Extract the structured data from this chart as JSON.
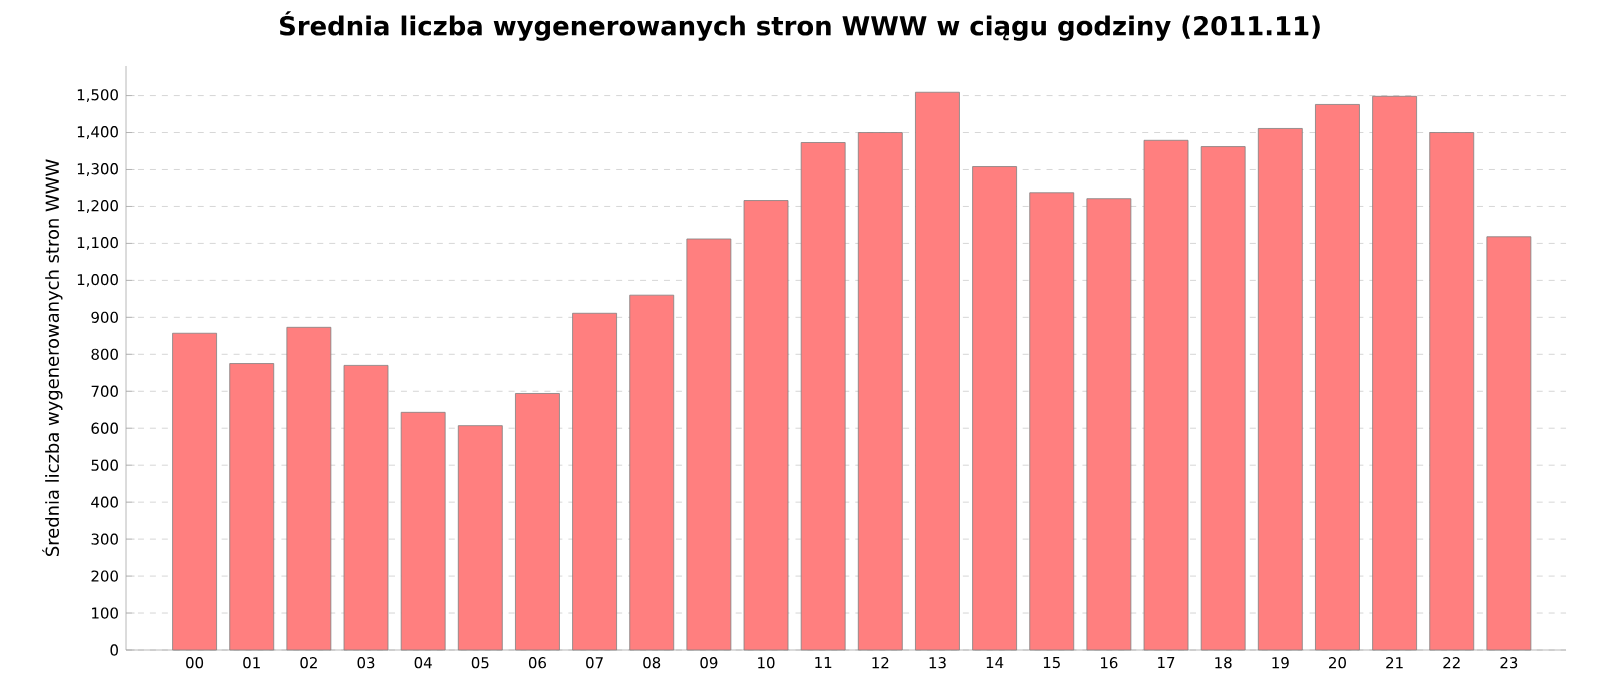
{
  "chart_data": {
    "type": "bar",
    "title": "Średnia liczba wygenerowanych stron WWW w ciągu godziny (2011.11)",
    "ylabel": "Średnia liczba wygenerowanych stron WWW",
    "categories": [
      "00",
      "01",
      "02",
      "03",
      "04",
      "05",
      "06",
      "07",
      "08",
      "09",
      "10",
      "11",
      "12",
      "13",
      "14",
      "15",
      "16",
      "17",
      "18",
      "19",
      "20",
      "21",
      "22",
      "23"
    ],
    "values": [
      857,
      775,
      873,
      770,
      643,
      607,
      694,
      911,
      960,
      1112,
      1216,
      1373,
      1400,
      1509,
      1308,
      1237,
      1221,
      1379,
      1362,
      1411,
      1476,
      1498,
      1400,
      1118
    ],
    "color": "#ff7f7f",
    "ylim": [
      0,
      1580
    ],
    "yticks": [
      0,
      {
        "value": 100,
        "label": "100"
      },
      {
        "value": 200,
        "label": "200"
      },
      {
        "value": 300,
        "label": "300"
      },
      {
        "value": 400,
        "label": "400"
      },
      {
        "value": 500,
        "label": "500"
      },
      {
        "value": 600,
        "label": "600"
      },
      {
        "value": 700,
        "label": "700"
      },
      {
        "value": 800,
        "label": "800"
      },
      {
        "value": 900,
        "label": "900"
      },
      {
        "value": 1000,
        "label": "1,000"
      },
      {
        "value": 1100,
        "label": "1,100"
      },
      {
        "value": 1200,
        "label": "1,200"
      },
      {
        "value": 1300,
        "label": "1,300"
      },
      {
        "value": 1400,
        "label": "1,400"
      },
      {
        "value": 1500,
        "label": "1,500"
      }
    ],
    "grid": "y"
  }
}
